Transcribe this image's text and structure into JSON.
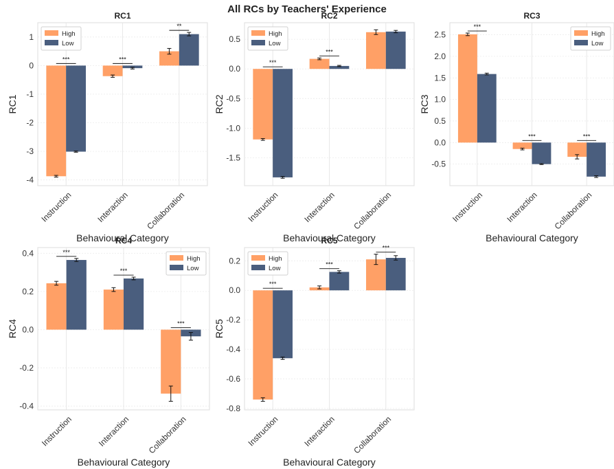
{
  "suptitle": "All RCs by Teachers' Experience",
  "colors": {
    "High": "#FFA066",
    "Low": "#4A5E7E"
  },
  "chart_data": [
    {
      "type": "bar",
      "title": "RC1",
      "ylabel": "RC1",
      "xlabel": "Behavioural Category",
      "categories": [
        "Instruction",
        "Interaction",
        "Collaboration"
      ],
      "ylim": [
        -4.2,
        1.5
      ],
      "yticks": [
        -4,
        -3,
        -2,
        -1,
        0,
        1
      ],
      "ytick_labels": [
        "-4",
        "-3",
        "-2",
        "-1",
        "0",
        "1"
      ],
      "legend": "top-left",
      "grid": true,
      "series": [
        {
          "name": "High",
          "values": [
            -3.87,
            -0.37,
            0.5
          ],
          "errors": [
            0.03,
            0.04,
            0.1
          ]
        },
        {
          "name": "Low",
          "values": [
            -3.01,
            -0.09,
            1.1
          ],
          "errors": [
            0.02,
            0.03,
            0.06
          ]
        }
      ],
      "significance": [
        "***",
        "***",
        "**"
      ]
    },
    {
      "type": "bar",
      "title": "RC2",
      "ylabel": "RC2",
      "xlabel": "Behavioural Category",
      "categories": [
        "Instruction",
        "Interaction",
        "Collaboration"
      ],
      "ylim": [
        -1.97,
        0.78
      ],
      "yticks": [
        -1.5,
        -1.0,
        -0.5,
        0.0,
        0.5
      ],
      "ytick_labels": [
        "-1.5",
        "-1.0",
        "-0.5",
        "0.0",
        "0.5"
      ],
      "legend": "top-left",
      "grid": true,
      "series": [
        {
          "name": "High",
          "values": [
            -1.19,
            0.17,
            0.62
          ],
          "errors": [
            0.015,
            0.015,
            0.04
          ]
        },
        {
          "name": "Low",
          "values": [
            -1.83,
            0.05,
            0.63
          ],
          "errors": [
            0.015,
            0.01,
            0.02
          ]
        }
      ],
      "significance": [
        "***",
        "***",
        ""
      ]
    },
    {
      "type": "bar",
      "title": "RC3",
      "ylabel": "RC3",
      "xlabel": "Behavioural Category",
      "categories": [
        "Instruction",
        "Interaction",
        "Collaboration"
      ],
      "ylim": [
        -1.0,
        2.78
      ],
      "yticks": [
        -0.5,
        0.0,
        0.5,
        1.0,
        1.5,
        2.0,
        2.5
      ],
      "ytick_labels": [
        "-0.5",
        "0.0",
        "0.5",
        "1.0",
        "1.5",
        "2.0",
        "2.5"
      ],
      "legend": "top-right",
      "grid": true,
      "series": [
        {
          "name": "High",
          "values": [
            2.51,
            -0.15,
            -0.33
          ],
          "errors": [
            0.03,
            0.02,
            0.05
          ]
        },
        {
          "name": "Low",
          "values": [
            1.59,
            -0.5,
            -0.79
          ],
          "errors": [
            0.02,
            0.01,
            0.02
          ]
        }
      ],
      "significance": [
        "***",
        "***",
        "***"
      ]
    },
    {
      "type": "bar",
      "title": "RC4",
      "ylabel": "RC4",
      "xlabel": "Behavioural Category",
      "categories": [
        "Instruction",
        "Interaction",
        "Collaboration"
      ],
      "ylim": [
        -0.42,
        0.43
      ],
      "yticks": [
        -0.4,
        -0.2,
        0.0,
        0.2,
        0.4
      ],
      "ytick_labels": [
        "-0.4",
        "-0.2",
        "0.0",
        "0.2",
        "0.4"
      ],
      "legend": "top-right",
      "grid": true,
      "series": [
        {
          "name": "High",
          "values": [
            0.243,
            0.21,
            -0.335
          ],
          "errors": [
            0.01,
            0.01,
            0.04
          ]
        },
        {
          "name": "Low",
          "values": [
            0.365,
            0.268,
            -0.035
          ],
          "errors": [
            0.008,
            0.007,
            0.02
          ]
        }
      ],
      "significance": [
        "***",
        "***",
        "***"
      ]
    },
    {
      "type": "bar",
      "title": "RC5",
      "ylabel": "RC5",
      "xlabel": "Behavioural Category",
      "categories": [
        "Instruction",
        "Interaction",
        "Collaboration"
      ],
      "ylim": [
        -0.81,
        0.29
      ],
      "yticks": [
        -0.8,
        -0.6,
        -0.4,
        -0.2,
        0.0,
        0.2
      ],
      "ytick_labels": [
        "-0.8",
        "-0.6",
        "-0.4",
        "-0.2",
        "0.0",
        "0.2"
      ],
      "legend": "top-left",
      "grid": true,
      "series": [
        {
          "name": "High",
          "values": [
            -0.74,
            0.02,
            0.21
          ],
          "errors": [
            0.012,
            0.01,
            0.035
          ]
        },
        {
          "name": "Low",
          "values": [
            -0.46,
            0.125,
            0.22
          ],
          "errors": [
            0.008,
            0.008,
            0.015
          ]
        }
      ],
      "significance": [
        "***",
        "***",
        "***"
      ]
    }
  ]
}
